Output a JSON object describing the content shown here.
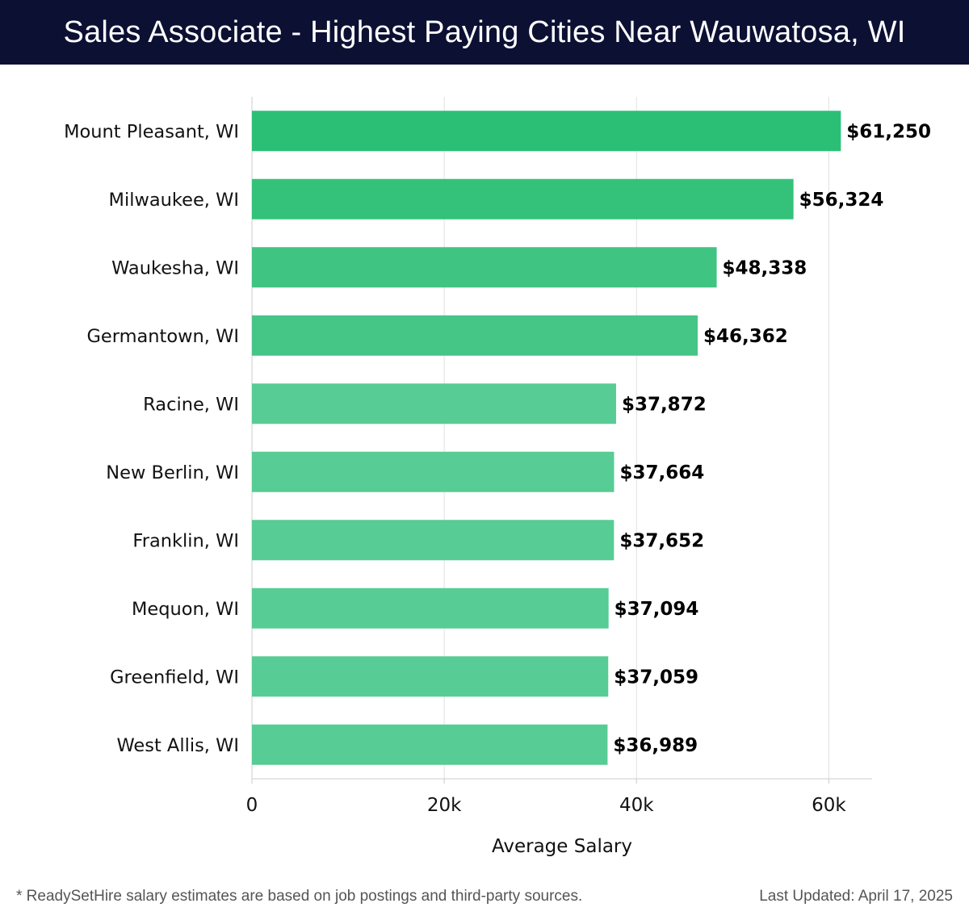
{
  "header": {
    "title": "Sales Associate - Highest Paying Cities Near Wauwatosa, WI"
  },
  "footer": {
    "note": "* ReadySetHire salary estimates are based on job postings and third-party sources.",
    "updated": "Last Updated: April 17, 2025"
  },
  "chart_data": {
    "type": "bar",
    "orientation": "horizontal",
    "title": "Sales Associate - Highest Paying Cities Near Wauwatosa, WI",
    "xlabel": "Average Salary",
    "ylabel": "",
    "xlim": [
      0,
      64500
    ],
    "xticks": [
      0,
      20000,
      40000,
      60000
    ],
    "xtick_labels": [
      "0",
      "20k",
      "40k",
      "60k"
    ],
    "grid": true,
    "categories": [
      "Mount Pleasant, WI",
      "Milwaukee, WI",
      "Waukesha, WI",
      "Germantown, WI",
      "Racine, WI",
      "New Berlin, WI",
      "Franklin, WI",
      "Mequon, WI",
      "Greenfield, WI",
      "West Allis, WI"
    ],
    "values": [
      61250,
      56324,
      48338,
      46362,
      37872,
      37664,
      37652,
      37094,
      37059,
      36989
    ],
    "value_labels": [
      "$61,250",
      "$56,324",
      "$48,338",
      "$46,362",
      "$37,872",
      "$37,664",
      "$37,652",
      "$37,094",
      "$37,059",
      "$36,989"
    ],
    "colors": [
      "#2bbf76",
      "#34c27b",
      "#40c482",
      "#45c586",
      "#57cc94",
      "#57cc94",
      "#57cc94",
      "#57cc94",
      "#57cc94",
      "#57cc94"
    ]
  }
}
